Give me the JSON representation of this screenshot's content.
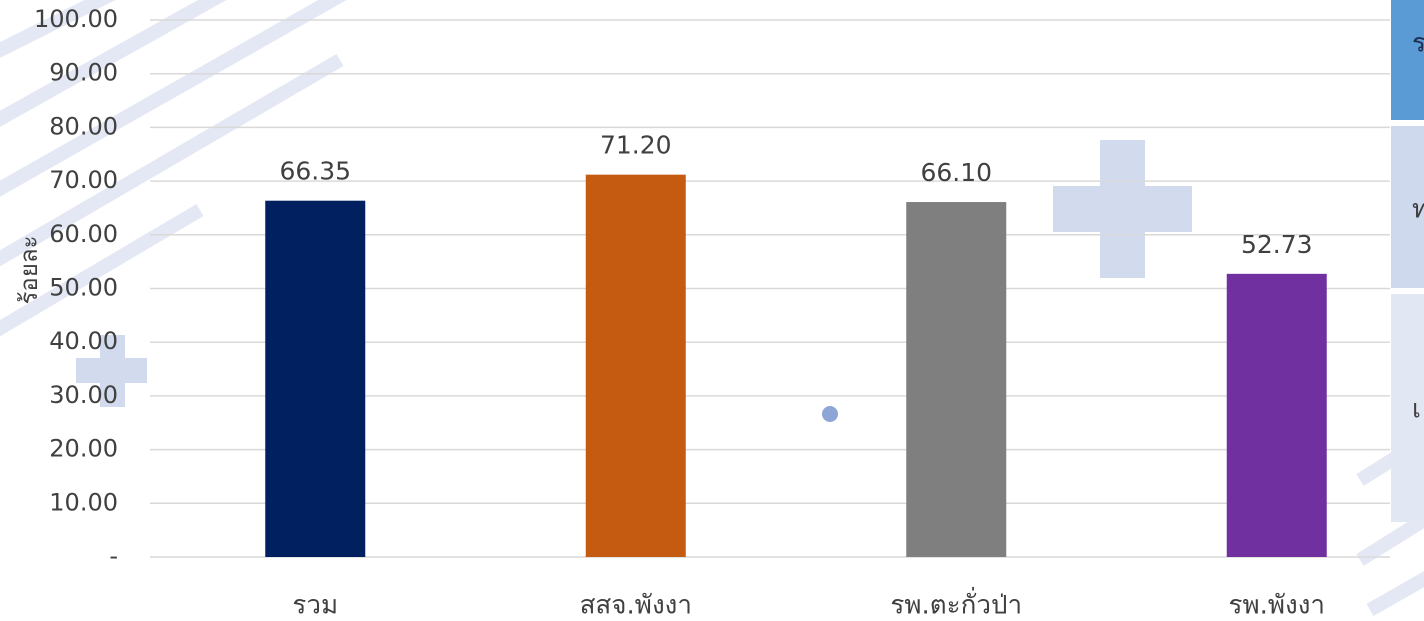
{
  "chart_data": {
    "type": "bar",
    "y_label": "ร้อยละ",
    "categories": [
      "รวม",
      "สสจ.พังงา",
      "รพ.ตะกั่วป่า",
      "รพ.พังงา"
    ],
    "values": [
      66.35,
      71.2,
      66.1,
      52.73
    ],
    "value_labels": [
      "66.35",
      "71.20",
      "66.10",
      "52.73"
    ],
    "colors": [
      "#002060",
      "#c55a11",
      "#7f7f7f",
      "#7030a0"
    ],
    "ylim": [
      0,
      100
    ],
    "yticks": [
      {
        "value": 0,
        "label": "-"
      },
      {
        "value": 10,
        "label": "10.00"
      },
      {
        "value": 20,
        "label": "20.00"
      },
      {
        "value": 30,
        "label": "30.00"
      },
      {
        "value": 40,
        "label": "40.00"
      },
      {
        "value": 50,
        "label": "50.00"
      },
      {
        "value": 60,
        "label": "60.00"
      },
      {
        "value": 70,
        "label": "70.00"
      },
      {
        "value": 80,
        "label": "80.00"
      },
      {
        "value": 90,
        "label": "90.00"
      },
      {
        "value": 100,
        "label": "100.00"
      }
    ],
    "grid": true
  },
  "side_table": {
    "cells": [
      "ร",
      "ท",
      "เ"
    ]
  }
}
